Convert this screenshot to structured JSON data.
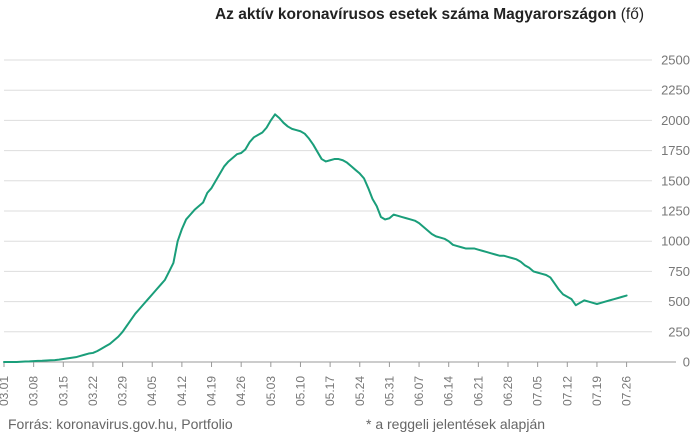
{
  "header": {
    "title_bold": "Az aktív koronavírusos esetek száma Magyarországon",
    "title_unit": "(fő)"
  },
  "footer": {
    "source": "Forrás: koronavirus.gov.hu, Portfolio",
    "note": "* a reggeli jelentések alapján"
  },
  "colors": {
    "line": "#1a9e7a",
    "grid": "#dddddd",
    "axis": "#999999",
    "text": "#777777"
  },
  "chart_data": {
    "type": "line",
    "title": "Az aktív koronavírusos esetek száma Magyarországon (fő)",
    "xlabel": "",
    "ylabel": "",
    "ylim": [
      0,
      2500
    ],
    "yticks": [
      0,
      250,
      500,
      750,
      1000,
      1250,
      1500,
      1750,
      2000,
      2250,
      2500
    ],
    "grid": true,
    "y_axis_side": "right",
    "x_start": "03.01",
    "x_tick_labels": [
      "03.01",
      "03.08",
      "03.15",
      "03.22",
      "03.29",
      "04.05",
      "04.12",
      "04.19",
      "04.26",
      "05.03",
      "05.10",
      "05.17",
      "05.24",
      "05.31",
      "06.07",
      "06.14",
      "06.21",
      "06.28",
      "07.05",
      "07.12",
      "07.19",
      "07.26"
    ],
    "series": [
      {
        "values": [
          0,
          0,
          0,
          0,
          2,
          4,
          5,
          7,
          9,
          10,
          12,
          14,
          16,
          20,
          25,
          30,
          35,
          40,
          50,
          60,
          70,
          75,
          90,
          110,
          130,
          150,
          180,
          210,
          250,
          300,
          350,
          400,
          440,
          480,
          520,
          560,
          600,
          640,
          680,
          750,
          820,
          1000,
          1100,
          1180,
          1220,
          1260,
          1290,
          1320,
          1400,
          1440,
          1500,
          1560,
          1620,
          1660,
          1690,
          1720,
          1730,
          1760,
          1820,
          1860,
          1880,
          1900,
          1940,
          2000,
          2050,
          2020,
          1980,
          1950,
          1930,
          1920,
          1910,
          1890,
          1850,
          1800,
          1740,
          1680,
          1660,
          1670,
          1680,
          1680,
          1670,
          1650,
          1620,
          1590,
          1560,
          1520,
          1440,
          1350,
          1290,
          1200,
          1180,
          1190,
          1220,
          1210,
          1200,
          1190,
          1180,
          1170,
          1150,
          1120,
          1090,
          1060,
          1040,
          1030,
          1020,
          1000,
          970,
          960,
          950,
          940,
          940,
          940,
          930,
          920,
          910,
          900,
          890,
          880,
          880,
          870,
          860,
          850,
          830,
          800,
          780,
          750,
          740,
          730,
          720,
          700,
          650,
          600,
          560,
          540,
          520,
          470,
          490,
          510,
          500,
          490,
          480,
          490,
          500,
          510,
          520,
          530,
          540,
          550
        ]
      }
    ]
  }
}
